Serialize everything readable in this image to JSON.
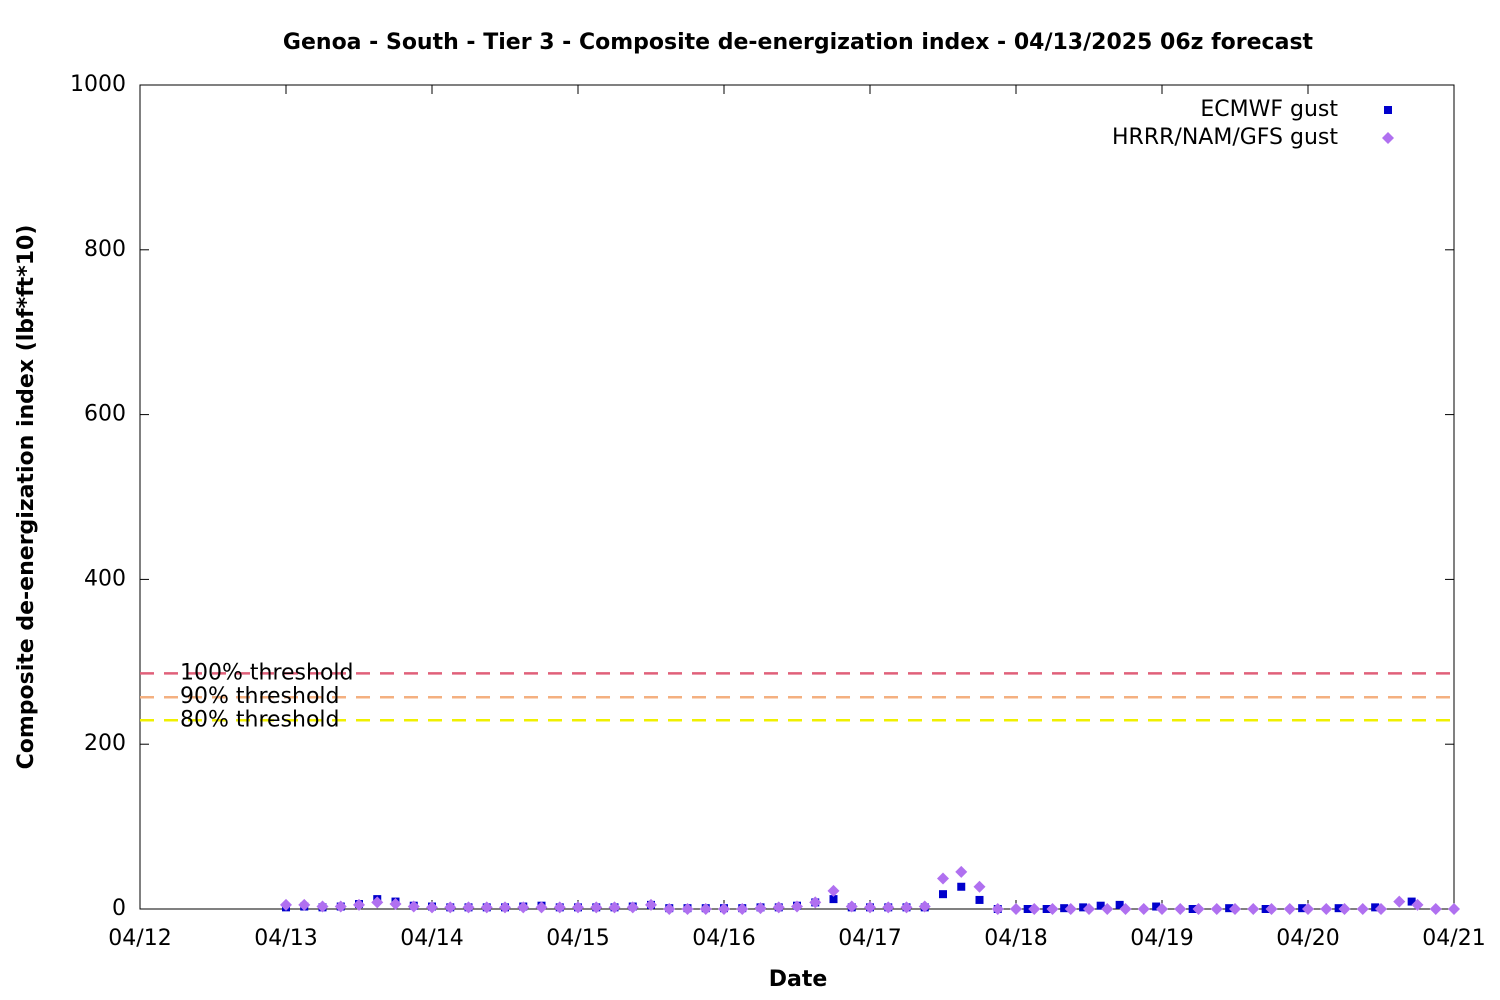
{
  "chart_data": {
    "type": "scatter",
    "title": "Genoa - South - Tier 3 - Composite de-energization index - 04/13/2025 06z forecast",
    "xlabel": "Date",
    "ylabel": "Composite de-energization index (lbf*ft*10)",
    "xlim": [
      12,
      21
    ],
    "xticks": [
      {
        "value": 12,
        "label": "04/12"
      },
      {
        "value": 13,
        "label": "04/13"
      },
      {
        "value": 14,
        "label": "04/14"
      },
      {
        "value": 15,
        "label": "04/15"
      },
      {
        "value": 16,
        "label": "04/16"
      },
      {
        "value": 17,
        "label": "04/17"
      },
      {
        "value": 18,
        "label": "04/18"
      },
      {
        "value": 19,
        "label": "04/19"
      },
      {
        "value": 20,
        "label": "04/20"
      },
      {
        "value": 21,
        "label": "04/21"
      }
    ],
    "ylim": [
      0,
      1000
    ],
    "yticks": [
      0,
      200,
      400,
      600,
      800,
      1000
    ],
    "legend": "top-right",
    "thresholds": [
      {
        "name": "100% threshold",
        "value": 286,
        "color": "#e0607a"
      },
      {
        "name": "90% threshold",
        "value": 257,
        "color": "#f4b080"
      },
      {
        "name": "80% threshold",
        "value": 229,
        "color": "#f0f000"
      }
    ],
    "series": [
      {
        "name": "ECMWF gust",
        "color": "#0000cc",
        "marker": "square",
        "x": [
          13,
          13.125,
          13.25,
          13.375,
          13.5,
          13.625,
          13.75,
          13.875,
          14,
          14.125,
          14.25,
          14.375,
          14.5,
          14.625,
          14.75,
          14.875,
          15,
          15.125,
          15.25,
          15.375,
          15.5,
          15.625,
          15.75,
          15.875,
          16,
          16.125,
          16.25,
          16.375,
          16.5,
          16.625,
          16.75,
          16.875,
          17,
          17.125,
          17.25,
          17.375,
          17.5,
          17.625,
          17.75,
          17.875,
          18.08,
          18.21,
          18.33,
          18.46,
          18.58,
          18.71,
          18.96,
          19.21,
          19.46,
          19.71,
          19.96,
          20.21,
          20.46,
          20.71
        ],
        "values": [
          2,
          3,
          2,
          3,
          6,
          12,
          9,
          4,
          3,
          2,
          2,
          2,
          2,
          3,
          4,
          2,
          2,
          2,
          2,
          3,
          5,
          1,
          1,
          1,
          1,
          1,
          2,
          2,
          4,
          8,
          12,
          2,
          2,
          2,
          2,
          2,
          18,
          27,
          11,
          0,
          0,
          0,
          1,
          2,
          4,
          5,
          3,
          0,
          1,
          0,
          1,
          1,
          2,
          9
        ]
      },
      {
        "name": "HRRR/NAM/GFS gust",
        "color": "#b070f0",
        "marker": "diamond",
        "x": [
          13,
          13.125,
          13.25,
          13.375,
          13.5,
          13.625,
          13.75,
          13.875,
          14,
          14.125,
          14.25,
          14.375,
          14.5,
          14.625,
          14.75,
          14.875,
          15,
          15.125,
          15.25,
          15.375,
          15.5,
          15.625,
          15.75,
          15.875,
          16,
          16.125,
          16.25,
          16.375,
          16.5,
          16.625,
          16.75,
          16.875,
          17,
          17.125,
          17.25,
          17.375,
          17.5,
          17.625,
          17.75,
          17.875,
          18,
          18.125,
          18.25,
          18.375,
          18.5,
          18.625,
          18.75,
          18.875,
          19,
          19.125,
          19.25,
          19.375,
          19.5,
          19.625,
          19.75,
          19.875,
          20,
          20.125,
          20.25,
          20.375,
          20.5,
          20.625,
          20.75,
          20.875,
          21
        ],
        "values": [
          5,
          5,
          3,
          3,
          5,
          8,
          6,
          3,
          2,
          2,
          2,
          2,
          2,
          2,
          2,
          2,
          2,
          2,
          2,
          2,
          5,
          0,
          0,
          0,
          0,
          0,
          1,
          2,
          3,
          8,
          22,
          3,
          2,
          2,
          2,
          3,
          37,
          45,
          27,
          0,
          0,
          0,
          0,
          0,
          0,
          0,
          0,
          0,
          0,
          0,
          0,
          0,
          0,
          0,
          0,
          0,
          0,
          0,
          0,
          0,
          0,
          9,
          5,
          0,
          0
        ]
      }
    ]
  }
}
